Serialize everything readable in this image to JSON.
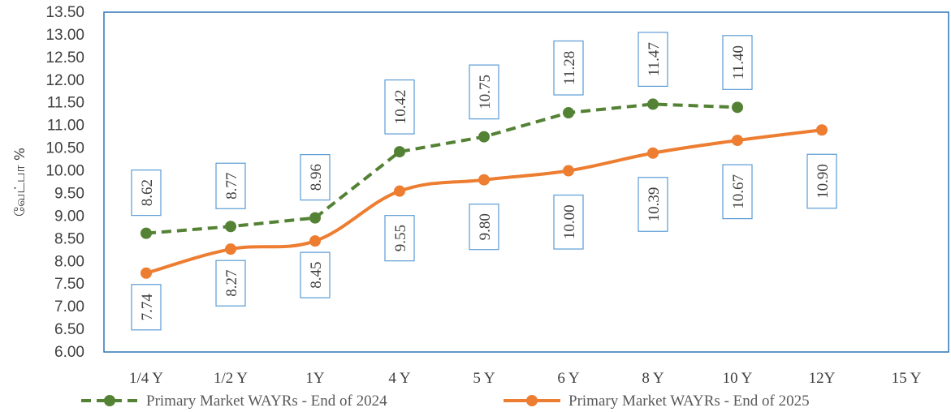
{
  "chart_data": {
    "type": "line",
    "ylabel": "வேட்பா %",
    "ylim": [
      6.0,
      13.5
    ],
    "y_ticks": [
      "6.00",
      "6.50",
      "7.00",
      "7.50",
      "8.00",
      "8.50",
      "9.00",
      "9.50",
      "10.00",
      "10.50",
      "11.00",
      "11.50",
      "12.00",
      "12.50",
      "13.00",
      "13.50"
    ],
    "categories": [
      "1/4 Y",
      "1/2 Y",
      "1Y",
      "4 Y",
      "5 Y",
      "6 Y",
      "8 Y",
      "10 Y",
      "12Y",
      "15 Y"
    ],
    "grid": false,
    "legend_position": "bottom",
    "series": [
      {
        "name": "Primary Market WAYRs - End of 2024",
        "color": "#548235",
        "style": "dashed",
        "values": [
          8.62,
          8.77,
          8.96,
          10.42,
          10.75,
          11.28,
          11.47,
          11.4,
          null,
          null
        ],
        "labels": [
          "8.62",
          "8.77",
          "8.96",
          "10.42",
          "10.75",
          "11.28",
          "11.47",
          "11.40",
          "",
          ""
        ]
      },
      {
        "name": "Primary Market WAYRs - End of 2025",
        "color": "#ED7D31",
        "style": "solid",
        "values": [
          7.74,
          8.27,
          8.45,
          9.55,
          9.8,
          10.0,
          10.39,
          10.67,
          10.9,
          null
        ],
        "labels": [
          "7.74",
          "8.27",
          "8.45",
          "9.55",
          "9.80",
          "10.00",
          "10.39",
          "10.67",
          "10.90",
          ""
        ]
      }
    ],
    "label_box_color": "#5B9BD5"
  }
}
